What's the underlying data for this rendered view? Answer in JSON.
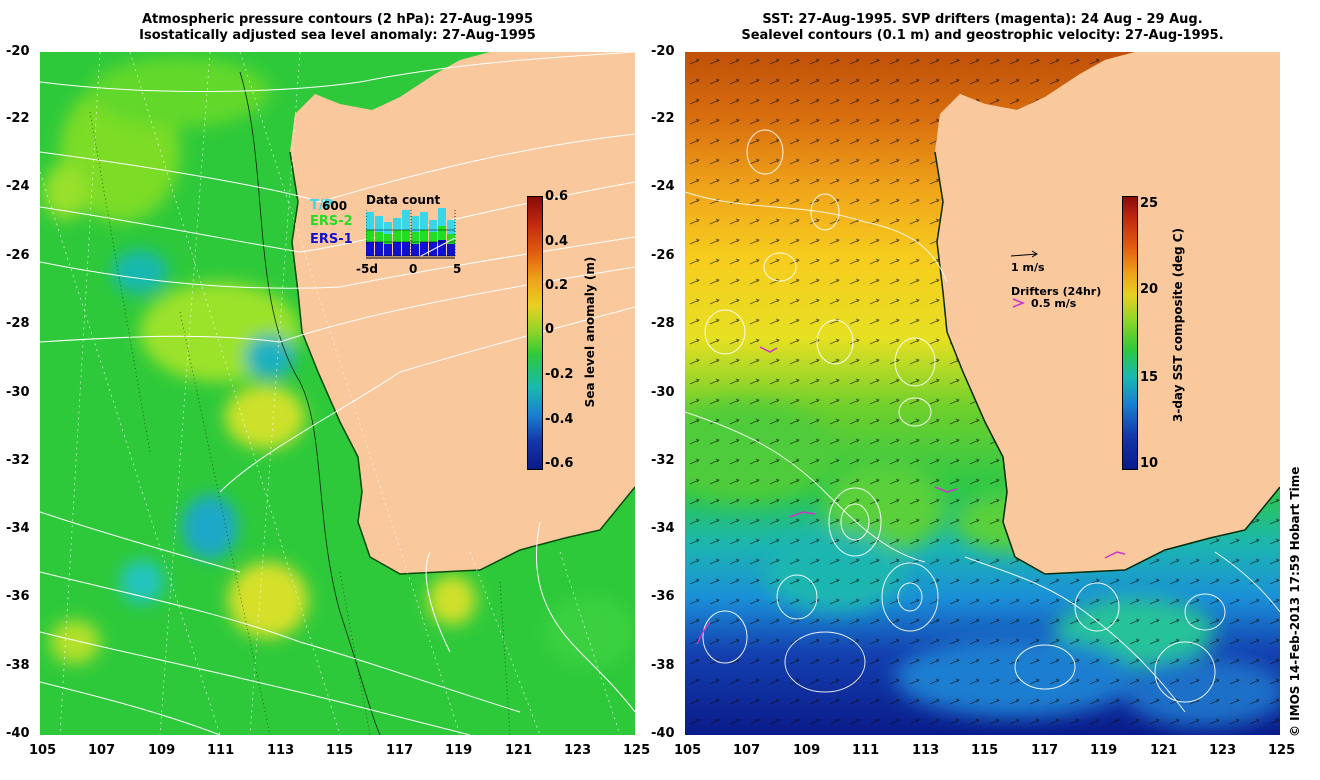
{
  "left_panel": {
    "title_line1": "Atmospheric pressure contours (2 hPa): 27-Aug-1995",
    "title_line2": "Isostatically adjusted sea level anomaly: 27-Aug-1995",
    "colorbar": {
      "label": "Sea level anomaly (m)",
      "ticks": [
        "0.6",
        "0.4",
        "0.2",
        "0",
        "-0.2",
        "-0.4",
        "-0.6"
      ]
    },
    "legend": {
      "title": "Data count",
      "entries": [
        {
          "label": "T/P",
          "color": "#3ad6e8"
        },
        {
          "label": "ERS-2",
          "color": "#22dd22"
        },
        {
          "label": "ERS-1",
          "color": "#1010d0"
        }
      ],
      "max_label": "600",
      "x_ticks": [
        "-5d",
        "0",
        "5"
      ]
    }
  },
  "right_panel": {
    "title_line1": "SST: 27-Aug-1995. SVP drifters (magenta): 24 Aug - 29 Aug.",
    "title_line2": "Sealevel contours (0.1 m) and geostrophic velocity: 27-Aug-1995.",
    "colorbar": {
      "label": "3-day SST composite (deg C)",
      "ticks": [
        "25",
        "20",
        "15",
        "10"
      ]
    },
    "velocity_scale": "1 m/s",
    "drifters_label": "Drifters (24hr)",
    "drifters_speed": "0.5 m/s"
  },
  "axes": {
    "lat_ticks": [
      "-20",
      "-22",
      "-24",
      "-26",
      "-28",
      "-30",
      "-32",
      "-34",
      "-36",
      "-38",
      "-40"
    ],
    "lon_ticks": [
      "105",
      "107",
      "109",
      "111",
      "113",
      "115",
      "117",
      "119",
      "121",
      "123",
      "125"
    ]
  },
  "credit": "© IMOS 14-Feb-2013 17:59 Hobart Time",
  "colors": {
    "land": "#f9c89c",
    "ocean_green": "#2bc93a",
    "contour": "#ffffff",
    "drifter": "#cc33cc"
  }
}
